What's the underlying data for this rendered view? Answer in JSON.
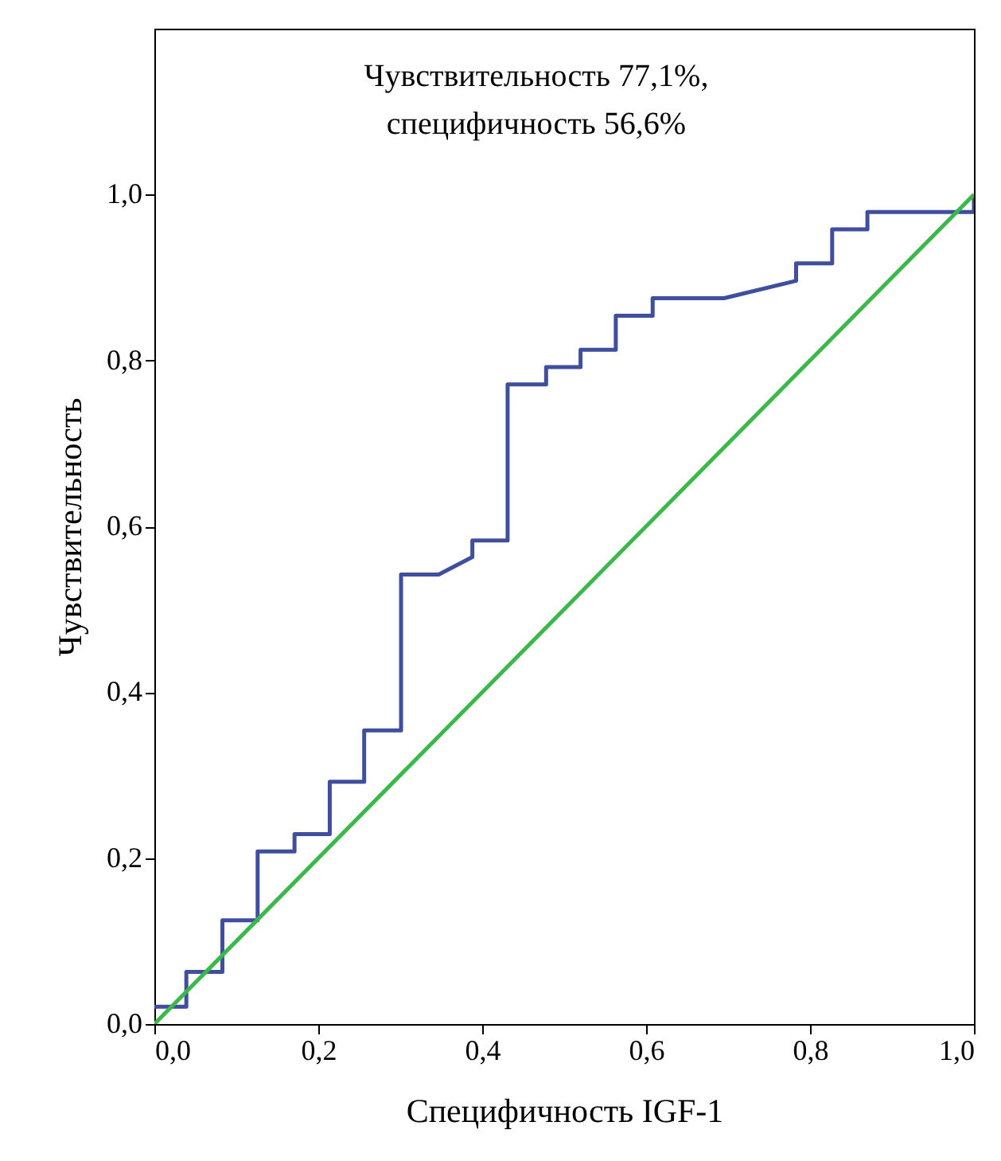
{
  "chart_data": {
    "type": "line",
    "xlabel": "Специфичность IGF-1",
    "ylabel": "Чувствительность",
    "annotations": [
      "Чувствительность 77,1%,",
      "специфичность 56,6%"
    ],
    "xlim": [
      0,
      1
    ],
    "ylim": [
      0,
      1.2
    ],
    "xticks": [
      {
        "value": 0,
        "label": "0,0"
      },
      {
        "value": 0.2,
        "label": "0,2"
      },
      {
        "value": 0.4,
        "label": "0,4"
      },
      {
        "value": 0.6,
        "label": "0,6"
      },
      {
        "value": 0.8,
        "label": "0,8"
      },
      {
        "value": 1,
        "label": "1,0"
      }
    ],
    "yticks": [
      {
        "value": 0,
        "label": "0,0"
      },
      {
        "value": 0.2,
        "label": "0,2"
      },
      {
        "value": 0.4,
        "label": "0,4"
      },
      {
        "value": 0.6,
        "label": "0,6"
      },
      {
        "value": 0.8,
        "label": "0,8"
      },
      {
        "value": 1,
        "label": "1,0"
      }
    ],
    "series": [
      {
        "color": "#3f4f9e",
        "x": [
          0,
          0.039,
          0.039,
          0.083,
          0.083,
          0.126,
          0.126,
          0.171,
          0.171,
          0.214,
          0.214,
          0.256,
          0.256,
          0.301,
          0.301,
          0.347,
          0.388,
          0.388,
          0.431,
          0.431,
          0.478,
          0.478,
          0.52,
          0.52,
          0.563,
          0.563,
          0.608,
          0.608,
          0.695,
          0.783,
          0.783,
          0.827,
          0.827,
          0.87,
          0.87,
          1,
          1
        ],
        "values": [
          0.021,
          0.021,
          0.063,
          0.063,
          0.125,
          0.125,
          0.208,
          0.208,
          0.229,
          0.229,
          0.292,
          0.292,
          0.354,
          0.354,
          0.542,
          0.542,
          0.563,
          0.583,
          0.583,
          0.771,
          0.771,
          0.792,
          0.792,
          0.813,
          0.813,
          0.854,
          0.854,
          0.875,
          0.875,
          0.896,
          0.917,
          0.917,
          0.958,
          0.958,
          0.979,
          0.979,
          1
        ]
      },
      {
        "color": "#3cb84a",
        "x": [
          0,
          1
        ],
        "values": [
          0,
          1
        ]
      }
    ]
  }
}
